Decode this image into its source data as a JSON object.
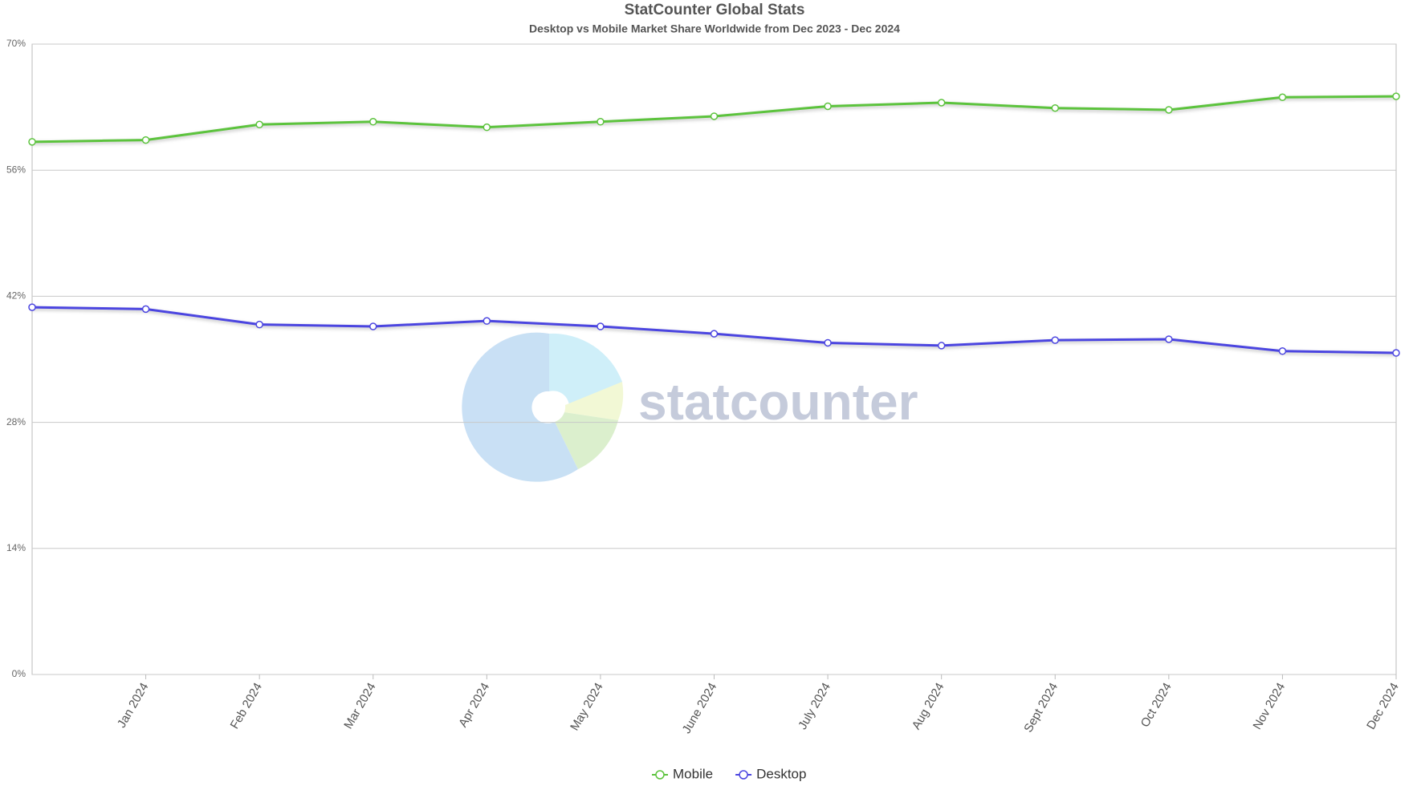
{
  "chart_data": {
    "type": "line",
    "title": "StatCounter Global Stats",
    "subtitle": "Desktop vs Mobile Market Share Worldwide from Dec 2023 - Dec 2024",
    "watermark": "statcounter",
    "categories": [
      null,
      "Jan 2024",
      "Feb 2024",
      "Mar 2024",
      "Apr 2024",
      "May 2024",
      "June 2024",
      "July 2024",
      "Aug 2024",
      "Sept 2024",
      "Oct 2024",
      "Nov 2024",
      "Dec 2024"
    ],
    "series": [
      {
        "name": "Mobile",
        "color": "#5cc33d",
        "values": [
          59.15,
          59.35,
          61.07,
          61.38,
          60.77,
          61.38,
          61.99,
          63.1,
          63.5,
          62.9,
          62.7,
          64.1,
          64.2
        ]
      },
      {
        "name": "Desktop",
        "color": "#4b45e0",
        "values": [
          40.78,
          40.58,
          38.86,
          38.65,
          39.26,
          38.65,
          37.84,
          36.83,
          36.52,
          37.13,
          37.23,
          35.91,
          35.71
        ]
      }
    ],
    "ylim": [
      0,
      70
    ],
    "yticks": [
      {
        "value": 0,
        "label": "0%"
      },
      {
        "value": 14,
        "label": "14%"
      },
      {
        "value": 28,
        "label": "28%"
      },
      {
        "value": 42,
        "label": "42%"
      },
      {
        "value": 56,
        "label": "56%"
      },
      {
        "value": 70,
        "label": "70%"
      }
    ],
    "grid": true
  }
}
